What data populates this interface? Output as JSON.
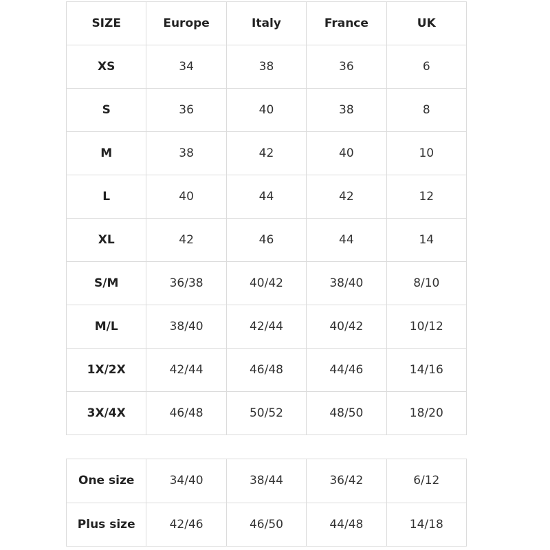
{
  "main_table": {
    "headers": [
      "SIZE",
      "Europe",
      "Italy",
      "France",
      "UK"
    ],
    "rows": [
      [
        "XS",
        "34",
        "38",
        "36",
        "6"
      ],
      [
        "S",
        "36",
        "40",
        "38",
        "8"
      ],
      [
        "M",
        "38",
        "42",
        "40",
        "10"
      ],
      [
        "L",
        "40",
        "44",
        "42",
        "12"
      ],
      [
        "XL",
        "42",
        "46",
        "44",
        "14"
      ],
      [
        "S/M",
        "36/38",
        "40/42",
        "38/40",
        "8/10"
      ],
      [
        "M/L",
        "38/40",
        "42/44",
        "40/42",
        "10/12"
      ],
      [
        "1X/2X",
        "42/44",
        "46/48",
        "44/46",
        "14/16"
      ],
      [
        "3X/4X",
        "46/48",
        "50/52",
        "48/50",
        "18/20"
      ]
    ]
  },
  "secondary_table": {
    "rows": [
      [
        "One size",
        "34/40",
        "38/44",
        "36/42",
        "6/12"
      ],
      [
        "Plus size",
        "42/46",
        "46/50",
        "44/48",
        "14/18"
      ]
    ]
  }
}
